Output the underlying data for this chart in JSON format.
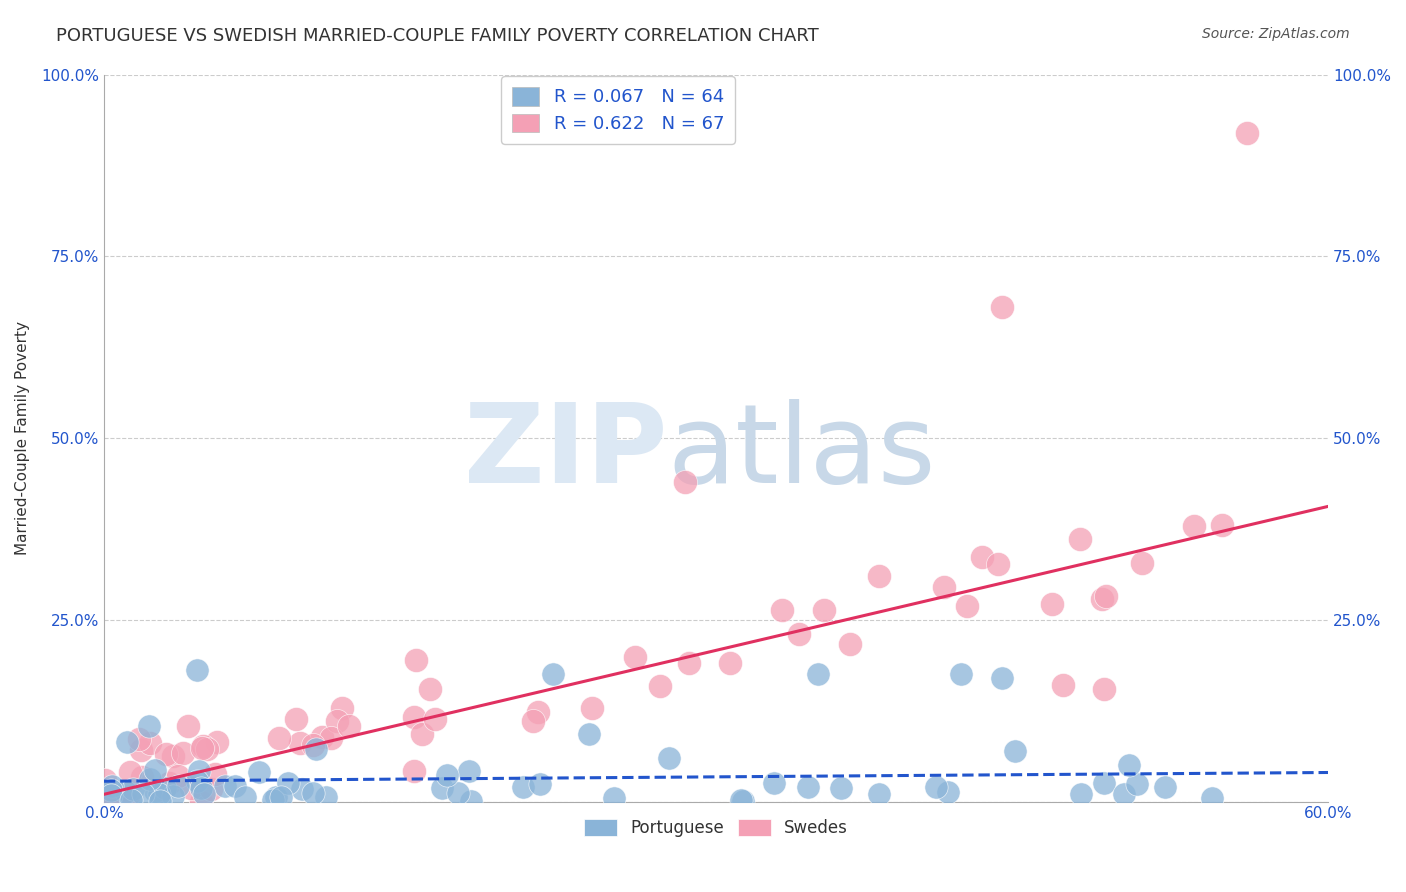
{
  "title": "PORTUGUESE VS SWEDISH MARRIED-COUPLE FAMILY POVERTY CORRELATION CHART",
  "source": "Source: ZipAtlas.com",
  "ylabel": "Married-Couple Family Poverty",
  "xlabel": "",
  "xlim": [
    0.0,
    0.6
  ],
  "ylim": [
    0.0,
    1.0
  ],
  "xticks": [
    0.0,
    0.1,
    0.2,
    0.3,
    0.4,
    0.5,
    0.6
  ],
  "xticklabels": [
    "0.0%",
    "",
    "",
    "",
    "",
    "",
    "60.0%"
  ],
  "yticks": [
    0.0,
    0.25,
    0.5,
    0.75,
    1.0
  ],
  "yticklabels": [
    "",
    "25.0%",
    "50.0%",
    "75.0%",
    "100.0%"
  ],
  "blue_color": "#8ab4d8",
  "pink_color": "#f4a0b5",
  "blue_line_color": "#2255cc",
  "pink_line_color": "#e03060",
  "grid_color": "#cccccc",
  "bg_color": "#ffffff",
  "legend_label_blue": "Portuguese",
  "legend_label_pink": "Swedes",
  "title_fontsize": 13,
  "axis_label_fontsize": 11,
  "tick_fontsize": 11,
  "blue_N": 64,
  "pink_N": 67
}
